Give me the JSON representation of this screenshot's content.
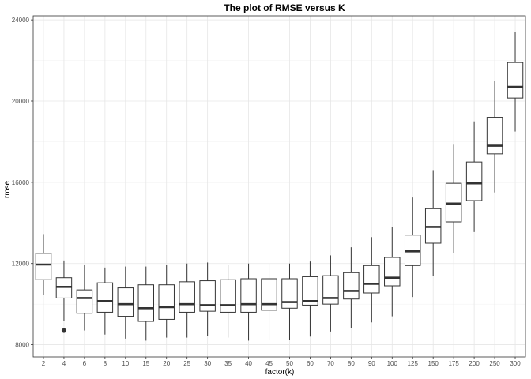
{
  "chart_data": {
    "type": "box",
    "title": "The plot of RMSE versus K",
    "xlabel": "factor(k)",
    "ylabel": "rmse",
    "ylim": [
      7400,
      24200
    ],
    "yticks": [
      8000,
      12000,
      16000,
      20000,
      24000
    ],
    "grid": true,
    "categories": [
      "2",
      "4",
      "6",
      "8",
      "10",
      "15",
      "20",
      "25",
      "30",
      "35",
      "40",
      "45",
      "50",
      "60",
      "70",
      "80",
      "90",
      "100",
      "125",
      "150",
      "175",
      "200",
      "250",
      "300"
    ],
    "boxes": [
      {
        "k": "2",
        "min": 10450,
        "q1": 11200,
        "median": 11950,
        "q3": 12500,
        "max": 13450,
        "outliers": []
      },
      {
        "k": "4",
        "min": 9150,
        "q1": 10300,
        "median": 10850,
        "q3": 11300,
        "max": 12150,
        "outliers": [
          8700
        ]
      },
      {
        "k": "6",
        "min": 8700,
        "q1": 9550,
        "median": 10300,
        "q3": 10700,
        "max": 11950,
        "outliers": []
      },
      {
        "k": "8",
        "min": 8500,
        "q1": 9600,
        "median": 10150,
        "q3": 11050,
        "max": 11800,
        "outliers": []
      },
      {
        "k": "10",
        "min": 8300,
        "q1": 9400,
        "median": 10000,
        "q3": 10800,
        "max": 11850,
        "outliers": []
      },
      {
        "k": "15",
        "min": 8200,
        "q1": 9150,
        "median": 9800,
        "q3": 10950,
        "max": 11850,
        "outliers": []
      },
      {
        "k": "20",
        "min": 8350,
        "q1": 9250,
        "median": 9850,
        "q3": 10950,
        "max": 11950,
        "outliers": []
      },
      {
        "k": "25",
        "min": 8350,
        "q1": 9600,
        "median": 10000,
        "q3": 11100,
        "max": 12000,
        "outliers": []
      },
      {
        "k": "30",
        "min": 8450,
        "q1": 9650,
        "median": 9950,
        "q3": 11150,
        "max": 12050,
        "outliers": []
      },
      {
        "k": "35",
        "min": 8350,
        "q1": 9600,
        "median": 9950,
        "q3": 11200,
        "max": 11950,
        "outliers": []
      },
      {
        "k": "40",
        "min": 8200,
        "q1": 9600,
        "median": 10000,
        "q3": 11250,
        "max": 12000,
        "outliers": []
      },
      {
        "k": "45",
        "min": 8250,
        "q1": 9700,
        "median": 10000,
        "q3": 11250,
        "max": 12000,
        "outliers": []
      },
      {
        "k": "50",
        "min": 8250,
        "q1": 9800,
        "median": 10100,
        "q3": 11250,
        "max": 12000,
        "outliers": []
      },
      {
        "k": "60",
        "min": 8400,
        "q1": 9950,
        "median": 10150,
        "q3": 11350,
        "max": 12100,
        "outliers": []
      },
      {
        "k": "70",
        "min": 8650,
        "q1": 10000,
        "median": 10300,
        "q3": 11400,
        "max": 12400,
        "outliers": []
      },
      {
        "k": "80",
        "min": 8800,
        "q1": 10250,
        "median": 10650,
        "q3": 11550,
        "max": 12800,
        "outliers": []
      },
      {
        "k": "90",
        "min": 9100,
        "q1": 10550,
        "median": 11000,
        "q3": 11900,
        "max": 13300,
        "outliers": []
      },
      {
        "k": "100",
        "min": 9400,
        "q1": 10900,
        "median": 11300,
        "q3": 12300,
        "max": 13800,
        "outliers": []
      },
      {
        "k": "125",
        "min": 10350,
        "q1": 11900,
        "median": 12600,
        "q3": 13400,
        "max": 15250,
        "outliers": []
      },
      {
        "k": "150",
        "min": 11400,
        "q1": 13000,
        "median": 13800,
        "q3": 14700,
        "max": 16600,
        "outliers": []
      },
      {
        "k": "175",
        "min": 12500,
        "q1": 14050,
        "median": 14950,
        "q3": 15950,
        "max": 17850,
        "outliers": []
      },
      {
        "k": "200",
        "min": 13550,
        "q1": 15100,
        "median": 15950,
        "q3": 17000,
        "max": 19000,
        "outliers": []
      },
      {
        "k": "250",
        "min": 15500,
        "q1": 17400,
        "median": 17800,
        "q3": 19200,
        "max": 21000,
        "outliers": []
      },
      {
        "k": "300",
        "min": 18500,
        "q1": 20150,
        "median": 20700,
        "q3": 21900,
        "max": 23400,
        "outliers": []
      }
    ]
  }
}
